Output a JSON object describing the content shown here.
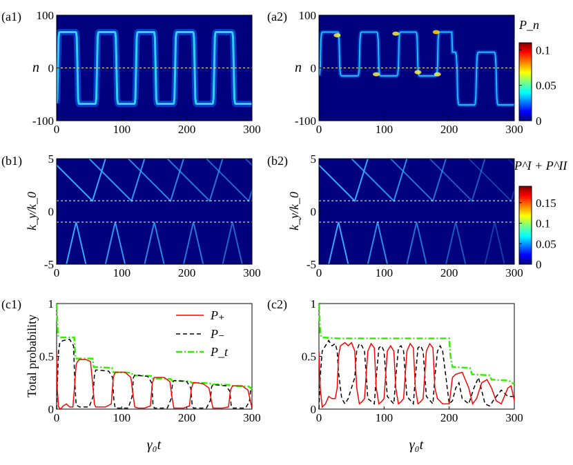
{
  "figure": {
    "panel_labels": [
      "(a1)",
      "(a2)",
      "(b1)",
      "(b2)",
      "(c1)",
      "(c2)"
    ],
    "colorbar_a_label": "P_n",
    "colorbar_b_label": "P^I + P^II",
    "colorbar_a_ticks": [
      "0",
      "0.05",
      "0.1"
    ],
    "colorbar_b_ticks": [
      "0",
      "0.05",
      "0.1",
      "0.15"
    ],
    "xlabel": "γ₀t",
    "ylabel_a": "n",
    "ylabel_b": "k_y/k_0",
    "ylabel_c": "Total probability",
    "legend": [
      "P₊",
      "P₋",
      "P_t"
    ],
    "colors": {
      "heat_bg": "#00007f",
      "p_plus": "#ff0000",
      "p_minus": "#000000",
      "p_t": "#33ee00",
      "dash": "#ffffff"
    }
  },
  "chart_data": [
    {
      "id": "a1",
      "type": "heatmap",
      "title": "(a1)",
      "xlabel": "",
      "ylabel": "n",
      "xlim": [
        0,
        300
      ],
      "ylim": [
        -100,
        100
      ],
      "xticks": [
        "0",
        "100",
        "200",
        "300"
      ],
      "yticks": [
        "-100",
        "0",
        "100"
      ],
      "colorbar": {
        "label": "P_n",
        "range": [
          0,
          0.11
        ]
      },
      "description_values": {
        "oscillation_period": 60,
        "amplitude": 68,
        "peak": 0.04
      }
    },
    {
      "id": "a2",
      "type": "heatmap",
      "title": "(a2)",
      "xlabel": "",
      "ylabel": "n",
      "xlim": [
        0,
        300
      ],
      "ylim": [
        -100,
        100
      ],
      "xticks": [
        "0",
        "100",
        "200",
        "300"
      ],
      "yticks": [
        "-100",
        "0",
        "100"
      ],
      "colorbar": {
        "label": "P_n",
        "range": [
          0,
          0.11
        ],
        "ticks": [
          0,
          0.05,
          0.1
        ]
      },
      "description_values": {
        "oscillation_period": 60,
        "upper_level": 68,
        "lower_level": -15,
        "late_lower_level": -70,
        "peak": 0.11
      }
    },
    {
      "id": "b1",
      "type": "heatmap",
      "title": "(b1)",
      "xlabel": "",
      "ylabel": "k_y/k_0",
      "xlim": [
        0,
        300
      ],
      "ylim": [
        -5,
        5
      ],
      "xticks": [
        "0",
        "100",
        "200",
        "300"
      ],
      "yticks": [
        "-5",
        "0",
        "5"
      ],
      "dashed_lines_y": [
        1,
        -1
      ]
    },
    {
      "id": "b2",
      "type": "heatmap",
      "title": "(b2)",
      "xlabel": "",
      "ylabel": "k_y/k_0",
      "xlim": [
        0,
        300
      ],
      "ylim": [
        -5,
        5
      ],
      "xticks": [
        "0",
        "100",
        "200",
        "300"
      ],
      "yticks": [
        "-5",
        "0",
        "5"
      ],
      "dashed_lines_y": [
        1,
        -1
      ],
      "colorbar": {
        "label": "P^I + P^II",
        "range": [
          0,
          0.19
        ],
        "ticks": [
          0,
          0.05,
          0.1,
          0.15
        ]
      }
    },
    {
      "id": "c1",
      "type": "line",
      "title": "(c1)",
      "xlabel": "γ₀t",
      "ylabel": "Total probability",
      "xlim": [
        0,
        300
      ],
      "ylim": [
        0,
        1
      ],
      "xticks": [
        "0",
        "100",
        "200",
        "300"
      ],
      "yticks": [
        "0",
        "0.5",
        "1"
      ],
      "series": [
        {
          "name": "P_t",
          "style": "dashdot",
          "color": "#33ee00",
          "x": [
            0,
            2,
            4,
            27,
            29,
            55,
            57,
            85,
            87,
            115,
            117,
            145,
            147,
            175,
            177,
            205,
            207,
            235,
            237,
            265,
            267,
            295,
            300
          ],
          "y": [
            1,
            0.7,
            0.68,
            0.68,
            0.48,
            0.48,
            0.4,
            0.39,
            0.35,
            0.345,
            0.32,
            0.315,
            0.29,
            0.285,
            0.27,
            0.265,
            0.25,
            0.245,
            0.235,
            0.23,
            0.22,
            0.215,
            0.19
          ]
        },
        {
          "name": "P_minus",
          "style": "dashed",
          "color": "#000000",
          "x": [
            0,
            1,
            3,
            5,
            10,
            20,
            26,
            28,
            30,
            35,
            50,
            56,
            58,
            60,
            64,
            80,
            86,
            88,
            90,
            94,
            110,
            116,
            118,
            120,
            124,
            140,
            146,
            148,
            150,
            154,
            170,
            176,
            178,
            180,
            184,
            200,
            206,
            208,
            210,
            214,
            230,
            236,
            238,
            240,
            244,
            260,
            266,
            268,
            270,
            274,
            290,
            296,
            298,
            300
          ],
          "y": [
            0,
            0.2,
            0.55,
            0.63,
            0.65,
            0.66,
            0.6,
            0.25,
            0.04,
            0.02,
            0.02,
            0.12,
            0.32,
            0.37,
            0.37,
            0.36,
            0.3,
            0.08,
            0.01,
            0.01,
            0.01,
            0.12,
            0.3,
            0.32,
            0.32,
            0.31,
            0.25,
            0.05,
            0.01,
            0.01,
            0.01,
            0.1,
            0.25,
            0.27,
            0.27,
            0.26,
            0.2,
            0.05,
            0.01,
            0.01,
            0.01,
            0.08,
            0.21,
            0.23,
            0.23,
            0.22,
            0.17,
            0.04,
            0.01,
            0.01,
            0.01,
            0.07,
            0.18,
            0.19
          ]
        },
        {
          "name": "P_plus",
          "style": "solid",
          "color": "#ff0000",
          "x": [
            0,
            1,
            3,
            6,
            10,
            15,
            20,
            25,
            28,
            30,
            32,
            35,
            45,
            52,
            56,
            58,
            60,
            64,
            75,
            84,
            87,
            90,
            95,
            105,
            114,
            117,
            120,
            125,
            135,
            144,
            147,
            150,
            155,
            165,
            174,
            177,
            180,
            185,
            195,
            204,
            207,
            210,
            215,
            225,
            234,
            237,
            240,
            245,
            255,
            264,
            267,
            270,
            275,
            285,
            294,
            297,
            300
          ],
          "y": [
            0.55,
            0.2,
            0.02,
            0.0,
            0.03,
            0.05,
            0.02,
            0.02,
            0.25,
            0.42,
            0.45,
            0.47,
            0.47,
            0.45,
            0.2,
            0.05,
            0.02,
            0.02,
            0.02,
            0.05,
            0.3,
            0.35,
            0.35,
            0.35,
            0.3,
            0.15,
            0.02,
            0.01,
            0.01,
            0.03,
            0.25,
            0.3,
            0.3,
            0.3,
            0.26,
            0.12,
            0.01,
            0.01,
            0.01,
            0.03,
            0.2,
            0.25,
            0.25,
            0.24,
            0.2,
            0.1,
            0.01,
            0.01,
            0.01,
            0.02,
            0.18,
            0.22,
            0.22,
            0.22,
            0.18,
            0.09,
            0.01
          ]
        }
      ]
    },
    {
      "id": "c2",
      "type": "line",
      "title": "(c2)",
      "xlabel": "γ₀t",
      "ylabel": "",
      "xlim": [
        0,
        300
      ],
      "ylim": [
        0,
        1
      ],
      "xticks": [
        "0",
        "100",
        "200",
        "300"
      ],
      "yticks": [
        "0",
        "0.5",
        "1"
      ],
      "series": [
        {
          "name": "P_t",
          "style": "dashdot",
          "color": "#33ee00",
          "x": [
            0,
            2,
            4,
            30,
            60,
            90,
            120,
            150,
            180,
            200,
            202,
            205,
            232,
            235,
            262,
            265,
            292,
            295,
            300
          ],
          "y": [
            1,
            0.72,
            0.68,
            0.67,
            0.67,
            0.67,
            0.67,
            0.67,
            0.67,
            0.67,
            0.5,
            0.4,
            0.39,
            0.33,
            0.32,
            0.28,
            0.27,
            0.25,
            0.24
          ]
        },
        {
          "name": "P_minus",
          "style": "dashed",
          "color": "#000000",
          "x": [
            0,
            2,
            5,
            10,
            15,
            20,
            25,
            28,
            30,
            35,
            40,
            45,
            55,
            58,
            62,
            66,
            70,
            75,
            85,
            88,
            92,
            96,
            100,
            105,
            115,
            118,
            122,
            126,
            130,
            135,
            145,
            148,
            152,
            156,
            160,
            165,
            175,
            178,
            182,
            186,
            190,
            195,
            200,
            205,
            210,
            215,
            220,
            230,
            238,
            245,
            255,
            262,
            270,
            280,
            290,
            300
          ],
          "y": [
            0,
            0.3,
            0.55,
            0.6,
            0.65,
            0.6,
            0.62,
            0.55,
            0.35,
            0.1,
            0.05,
            0.1,
            0.3,
            0.55,
            0.62,
            0.6,
            0.55,
            0.1,
            0.05,
            0.3,
            0.58,
            0.6,
            0.55,
            0.12,
            0.05,
            0.3,
            0.58,
            0.6,
            0.55,
            0.12,
            0.05,
            0.3,
            0.58,
            0.6,
            0.55,
            0.12,
            0.05,
            0.3,
            0.55,
            0.6,
            0.55,
            0.3,
            0.05,
            0.08,
            0.2,
            0.25,
            0.1,
            0.05,
            0.2,
            0.3,
            0.05,
            0.03,
            0.1,
            0.18,
            0.12,
            0.12
          ]
        },
        {
          "name": "P_plus",
          "style": "solid",
          "color": "#ff0000",
          "x": [
            0,
            2,
            5,
            10,
            15,
            20,
            25,
            28,
            30,
            33,
            40,
            45,
            50,
            55,
            58,
            62,
            66,
            70,
            75,
            80,
            85,
            88,
            92,
            96,
            100,
            105,
            110,
            115,
            118,
            122,
            126,
            130,
            135,
            140,
            145,
            148,
            152,
            156,
            160,
            165,
            170,
            175,
            178,
            182,
            190,
            200,
            205,
            210,
            220,
            230,
            236,
            242,
            250,
            258,
            265,
            272,
            280,
            290,
            295,
            300
          ],
          "y": [
            0.55,
            0.2,
            0.02,
            0.05,
            0.12,
            0.1,
            0.1,
            0.2,
            0.5,
            0.6,
            0.63,
            0.6,
            0.63,
            0.55,
            0.2,
            0.05,
            0.07,
            0.1,
            0.55,
            0.62,
            0.58,
            0.2,
            0.05,
            0.07,
            0.1,
            0.55,
            0.6,
            0.55,
            0.2,
            0.05,
            0.07,
            0.1,
            0.55,
            0.62,
            0.58,
            0.2,
            0.05,
            0.07,
            0.1,
            0.55,
            0.62,
            0.58,
            0.2,
            0.1,
            0.05,
            0.05,
            0.3,
            0.33,
            0.35,
            0.2,
            0.05,
            0.1,
            0.25,
            0.28,
            0.2,
            0.08,
            0.05,
            0.2,
            0.22,
            0.08
          ]
        }
      ]
    }
  ]
}
